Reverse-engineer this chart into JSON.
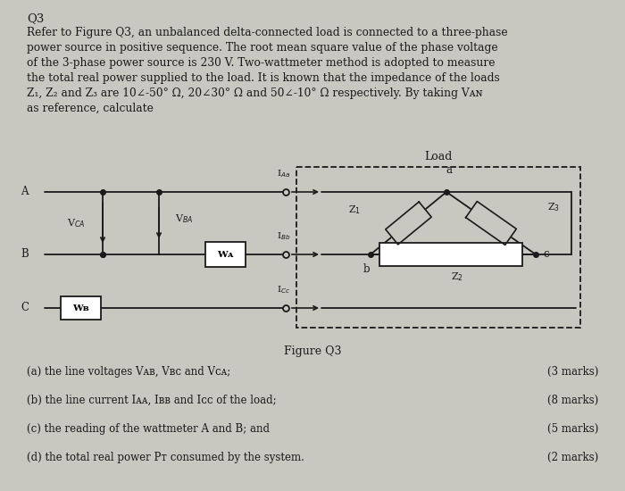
{
  "bg_color": "#c8c8c0",
  "text_color": "#1a1a1a",
  "title": "Q3",
  "lines": [
    "Refer to Figure Q3, an unbalanced delta-connected load is connected to a three-phase",
    "power source in positive sequence. The root mean square value of the phase voltage",
    "of the 3-phase power source is 230 V. Two-wattmeter method is adopted to measure",
    "the total real power supplied to the load. It is known that the impedance of the loads",
    "Z₁, Z₂ and Z₃ are 10∠-50° Ω, 20∠30° Ω and 50∠-10° Ω respectively. By taking Vᴀɴ",
    "as reference, calculate"
  ],
  "load_label": "Load",
  "figure_label": "Figure Q3",
  "q_a": "(a) the line voltages Vᴀв, Vвᴄ and Vᴄᴀ;",
  "q_b": "(b) the line current Iᴀᴀ, Iвв and Iᴄᴄ of the load;",
  "q_c": "(c) the reading of the wattmeter A and B; and",
  "q_d": "(d) the total real power Pᴛ consumed by the system.",
  "m_a": "(3 marks)",
  "m_b": "(8 marks)",
  "m_c": "(5 marks)",
  "m_d": "(2 marks)"
}
